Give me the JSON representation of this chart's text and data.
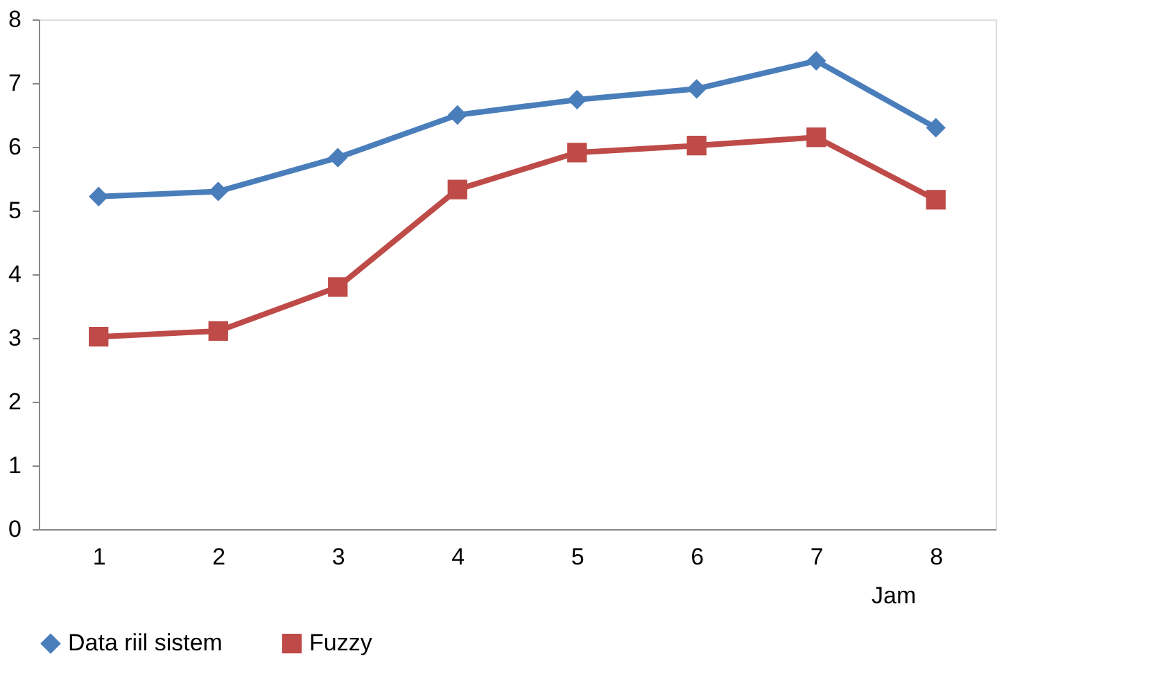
{
  "chart_data": {
    "type": "line",
    "xlabel": "Jam",
    "categories": [
      "1",
      "2",
      "3",
      "4",
      "5",
      "6",
      "7",
      "8"
    ],
    "series": [
      {
        "name": "Data riil sistem",
        "color": "#4a7ebb",
        "marker": "diamond",
        "values": [
          5.22,
          5.3,
          5.83,
          6.5,
          6.74,
          6.91,
          7.35,
          6.3
        ]
      },
      {
        "name": "Fuzzy",
        "color": "#be4b48",
        "marker": "square",
        "values": [
          3.02,
          3.11,
          3.8,
          5.33,
          5.91,
          6.02,
          6.15,
          5.17
        ]
      }
    ],
    "ylim": [
      0,
      8
    ],
    "yticks": [
      0,
      1,
      2,
      3,
      4,
      5,
      6,
      7,
      8
    ],
    "grid": false,
    "legend": "bottom",
    "line_style": "solid"
  }
}
